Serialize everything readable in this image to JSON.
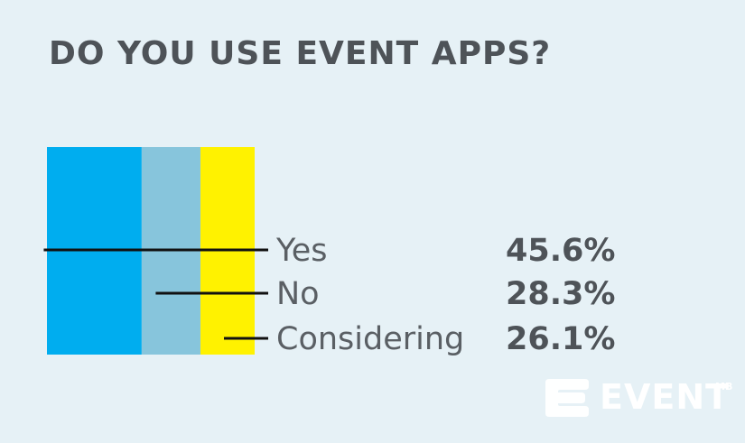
{
  "chart_data": {
    "type": "bar",
    "orientation": "stacked-horizontal-100",
    "title": "DO YOU USE EVENT APPS?",
    "categories": [
      "Yes",
      "No",
      "Considering"
    ],
    "values": [
      45.6,
      28.3,
      26.1
    ],
    "value_labels": [
      "45.6%",
      "28.3%",
      "26.1%"
    ],
    "colors": [
      "#00adef",
      "#87c5dc",
      "#fff200"
    ],
    "grid": false,
    "legend": "right"
  },
  "brand": {
    "name": "EVENT",
    "superscript": "MB",
    "icon": "eventmb-logo-icon",
    "color": "#ffffff"
  }
}
